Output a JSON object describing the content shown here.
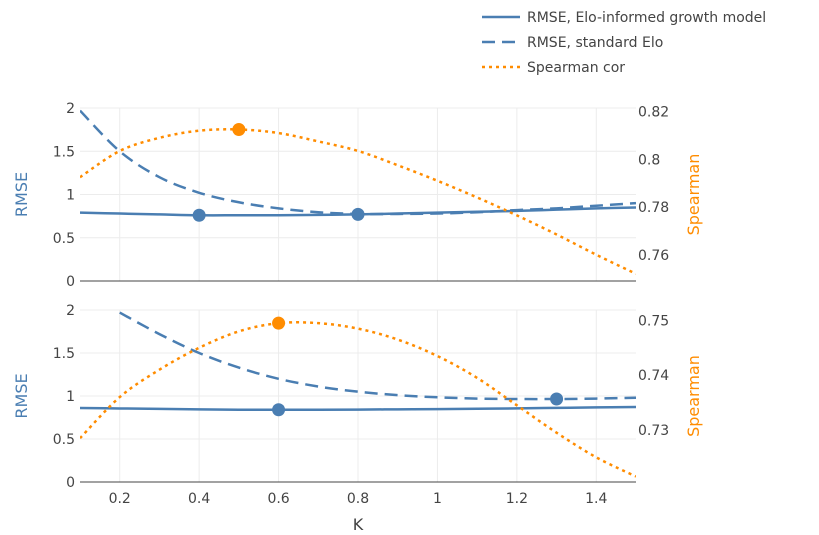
{
  "colors": {
    "rmse": "#4a7eb2",
    "spearman": "#ff8c00",
    "grid": "#ececec",
    "zeroline": "#444444",
    "tick": "#444444"
  },
  "chart_data": {
    "type": "line",
    "legend": {
      "placement": "top-right",
      "items": [
        {
          "label": "RMSE, Elo-informed growth model",
          "style": "solid",
          "color": "#4a7eb2"
        },
        {
          "label": "RMSE, standard Elo",
          "style": "dashed",
          "color": "#4a7eb2"
        },
        {
          "label": "Spearman cor",
          "style": "dotted",
          "color": "#ff8c00"
        }
      ]
    },
    "xlabel": "K",
    "xlim": [
      0.1,
      1.5
    ],
    "xticks": [
      0.2,
      0.4,
      0.6,
      0.8,
      1,
      1.2,
      1.4
    ],
    "xtick_labels": [
      "0.2",
      "0.4",
      "0.6",
      "0.8",
      "1",
      "1.2",
      "1.4"
    ],
    "grid": true,
    "panels": [
      {
        "ylabel_left": "RMSE",
        "ylabel_right": "Spearman",
        "ylim_left": [
          0,
          2
        ],
        "yticks_left": [
          0,
          0.5,
          1,
          1.5,
          2
        ],
        "ytick_labels_left": [
          "0",
          "0.5",
          "1",
          "1.5",
          "2"
        ],
        "ylim_right": [
          0.749,
          0.8215
        ],
        "yticks_right": [
          0.76,
          0.78,
          0.8,
          0.82
        ],
        "ytick_labels_right": [
          "0.76",
          "0.78",
          "0.8",
          "0.82"
        ],
        "series": [
          {
            "name": "RMSE, Elo-informed growth model",
            "axis": "left",
            "style": "solid",
            "x": [
              0.1,
              0.2,
              0.3,
              0.4,
              0.5,
              0.6,
              0.7,
              0.8,
              0.9,
              1.0,
              1.1,
              1.2,
              1.3,
              1.4,
              1.5
            ],
            "y": [
              0.79,
              0.78,
              0.77,
              0.76,
              0.76,
              0.76,
              0.765,
              0.77,
              0.78,
              0.79,
              0.8,
              0.81,
              0.825,
              0.84,
              0.85
            ]
          },
          {
            "name": "RMSE, standard Elo",
            "axis": "left",
            "style": "dashed",
            "x": [
              0.1,
              0.2,
              0.3,
              0.4,
              0.5,
              0.6,
              0.7,
              0.8,
              0.9,
              1.0,
              1.1,
              1.2,
              1.3,
              1.4,
              1.5
            ],
            "y": [
              1.97,
              1.5,
              1.2,
              1.02,
              0.91,
              0.84,
              0.795,
              0.775,
              0.775,
              0.78,
              0.795,
              0.82,
              0.84,
              0.87,
              0.9
            ]
          },
          {
            "name": "Spearman cor",
            "axis": "right",
            "style": "dotted",
            "x": [
              0.1,
              0.2,
              0.3,
              0.4,
              0.5,
              0.6,
              0.7,
              0.8,
              0.9,
              1.0,
              1.1,
              1.2,
              1.3,
              1.4,
              1.5
            ],
            "y": [
              0.7925,
              0.8035,
              0.809,
              0.812,
              0.8125,
              0.811,
              0.8075,
              0.8035,
              0.7975,
              0.791,
              0.784,
              0.7765,
              0.7685,
              0.76,
              0.752
            ]
          }
        ],
        "markers": [
          {
            "axis": "left",
            "x": 0.4,
            "y": 0.76,
            "color": "#4a7eb2"
          },
          {
            "axis": "left",
            "x": 0.8,
            "y": 0.77,
            "color": "#4a7eb2"
          },
          {
            "axis": "right",
            "x": 0.5,
            "y": 0.8125,
            "color": "#ff8c00"
          }
        ]
      },
      {
        "ylabel_left": "RMSE",
        "ylabel_right": "Spearman",
        "ylim_left": [
          0,
          2
        ],
        "yticks_left": [
          0,
          0.5,
          1,
          1.5,
          2
        ],
        "ytick_labels_left": [
          "0",
          "0.5",
          "1",
          "1.5",
          "2"
        ],
        "ylim_right": [
          0.7205,
          0.7519
        ],
        "yticks_right": [
          0.73,
          0.74,
          0.75
        ],
        "ytick_labels_right": [
          "0.73",
          "0.74",
          "0.75"
        ],
        "series": [
          {
            "name": "RMSE, Elo-informed growth model",
            "axis": "left",
            "style": "solid",
            "x": [
              0.1,
              0.2,
              0.3,
              0.4,
              0.5,
              0.6,
              0.7,
              0.8,
              0.9,
              1.0,
              1.1,
              1.2,
              1.3,
              1.4,
              1.5
            ],
            "y": [
              0.86,
              0.855,
              0.85,
              0.845,
              0.84,
              0.84,
              0.84,
              0.842,
              0.845,
              0.848,
              0.852,
              0.856,
              0.862,
              0.868,
              0.872
            ]
          },
          {
            "name": "RMSE, standard Elo",
            "axis": "left",
            "style": "dashed",
            "x": [
              0.2,
              0.3,
              0.4,
              0.5,
              0.6,
              0.7,
              0.8,
              0.9,
              1.0,
              1.1,
              1.2,
              1.3,
              1.4,
              1.5
            ],
            "y": [
              1.97,
              1.72,
              1.5,
              1.33,
              1.2,
              1.11,
              1.05,
              1.01,
              0.985,
              0.97,
              0.965,
              0.965,
              0.97,
              0.98
            ]
          },
          {
            "name": "Spearman cor",
            "axis": "right",
            "style": "dotted",
            "x": [
              0.1,
              0.2,
              0.3,
              0.4,
              0.5,
              0.6,
              0.7,
              0.8,
              0.9,
              1.0,
              1.1,
              1.2,
              1.3,
              1.4,
              1.5
            ],
            "y": [
              0.7285,
              0.736,
              0.741,
              0.745,
              0.748,
              0.7495,
              0.7495,
              0.7485,
              0.7465,
              0.7435,
              0.7395,
              0.7345,
              0.7295,
              0.725,
              0.7215
            ]
          }
        ],
        "markers": [
          {
            "axis": "left",
            "x": 0.6,
            "y": 0.84,
            "color": "#4a7eb2"
          },
          {
            "axis": "left",
            "x": 1.3,
            "y": 0.965,
            "color": "#4a7eb2"
          },
          {
            "axis": "right",
            "x": 0.6,
            "y": 0.7495,
            "color": "#ff8c00"
          }
        ]
      }
    ]
  }
}
